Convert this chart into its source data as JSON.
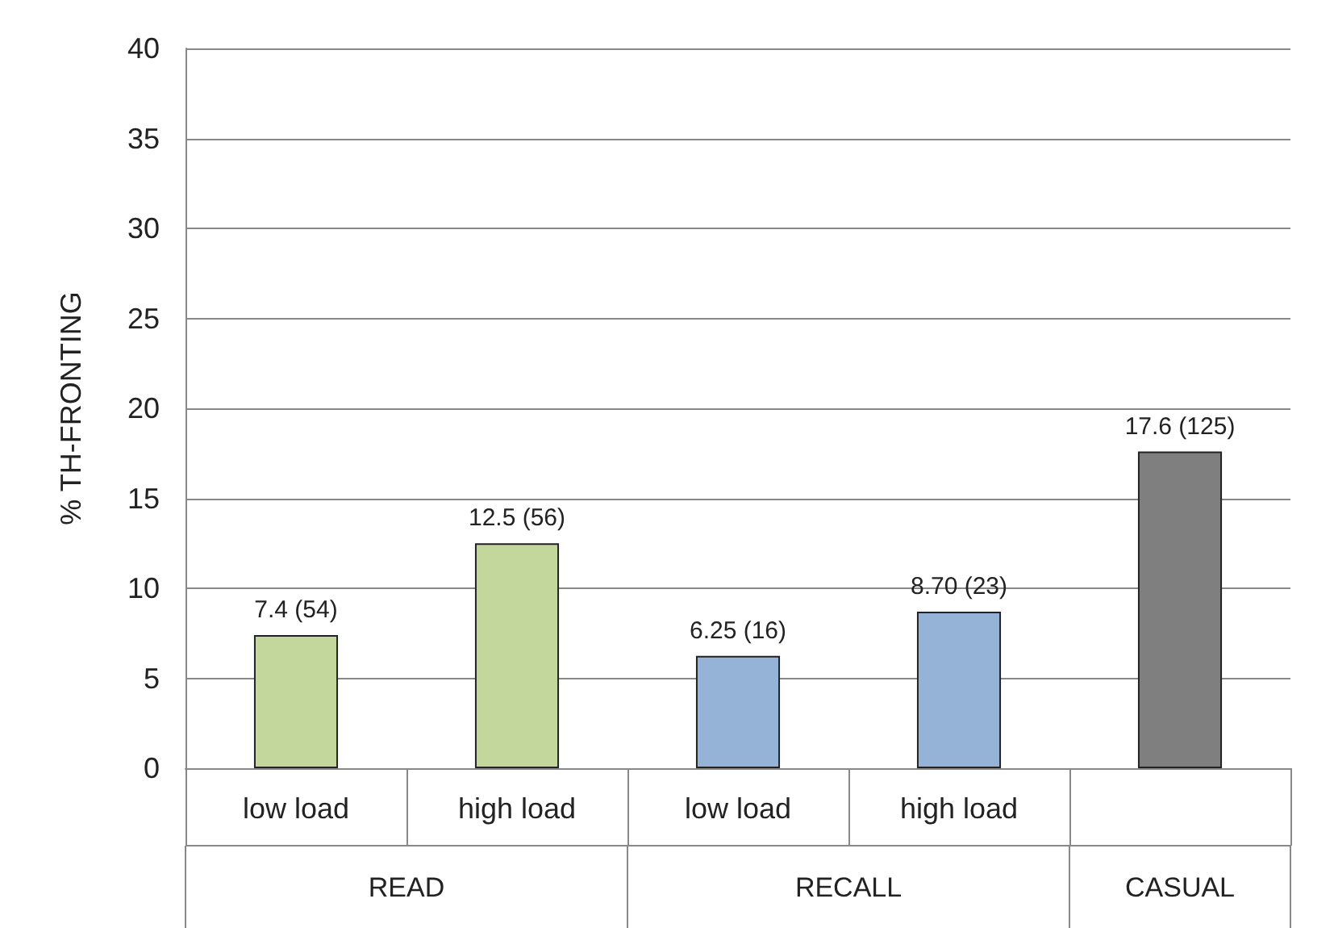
{
  "chart_data": {
    "type": "bar",
    "ylabel": "% TH-FRONTING",
    "categories": [
      "low load",
      "high load",
      "low load",
      "high load",
      null
    ],
    "values": [
      7.4,
      12.5,
      6.25,
      8.7,
      17.6
    ],
    "colors": [
      "#c3d69b",
      "#c3d69b",
      "#95b3d7",
      "#95b3d7",
      "#7f7f7f"
    ],
    "value_labels": [
      "7.4 (54)",
      "12.5 (56)",
      "6.25 (16)",
      "8.70 (23)",
      "17.6 (125)"
    ],
    "annotations": [
      "READ",
      "RECALL",
      "CASUAL"
    ],
    "ylim": [
      0,
      40
    ],
    "yticks": [
      0,
      5,
      10,
      15,
      20,
      25,
      30,
      35,
      40
    ],
    "grid": "y"
  }
}
